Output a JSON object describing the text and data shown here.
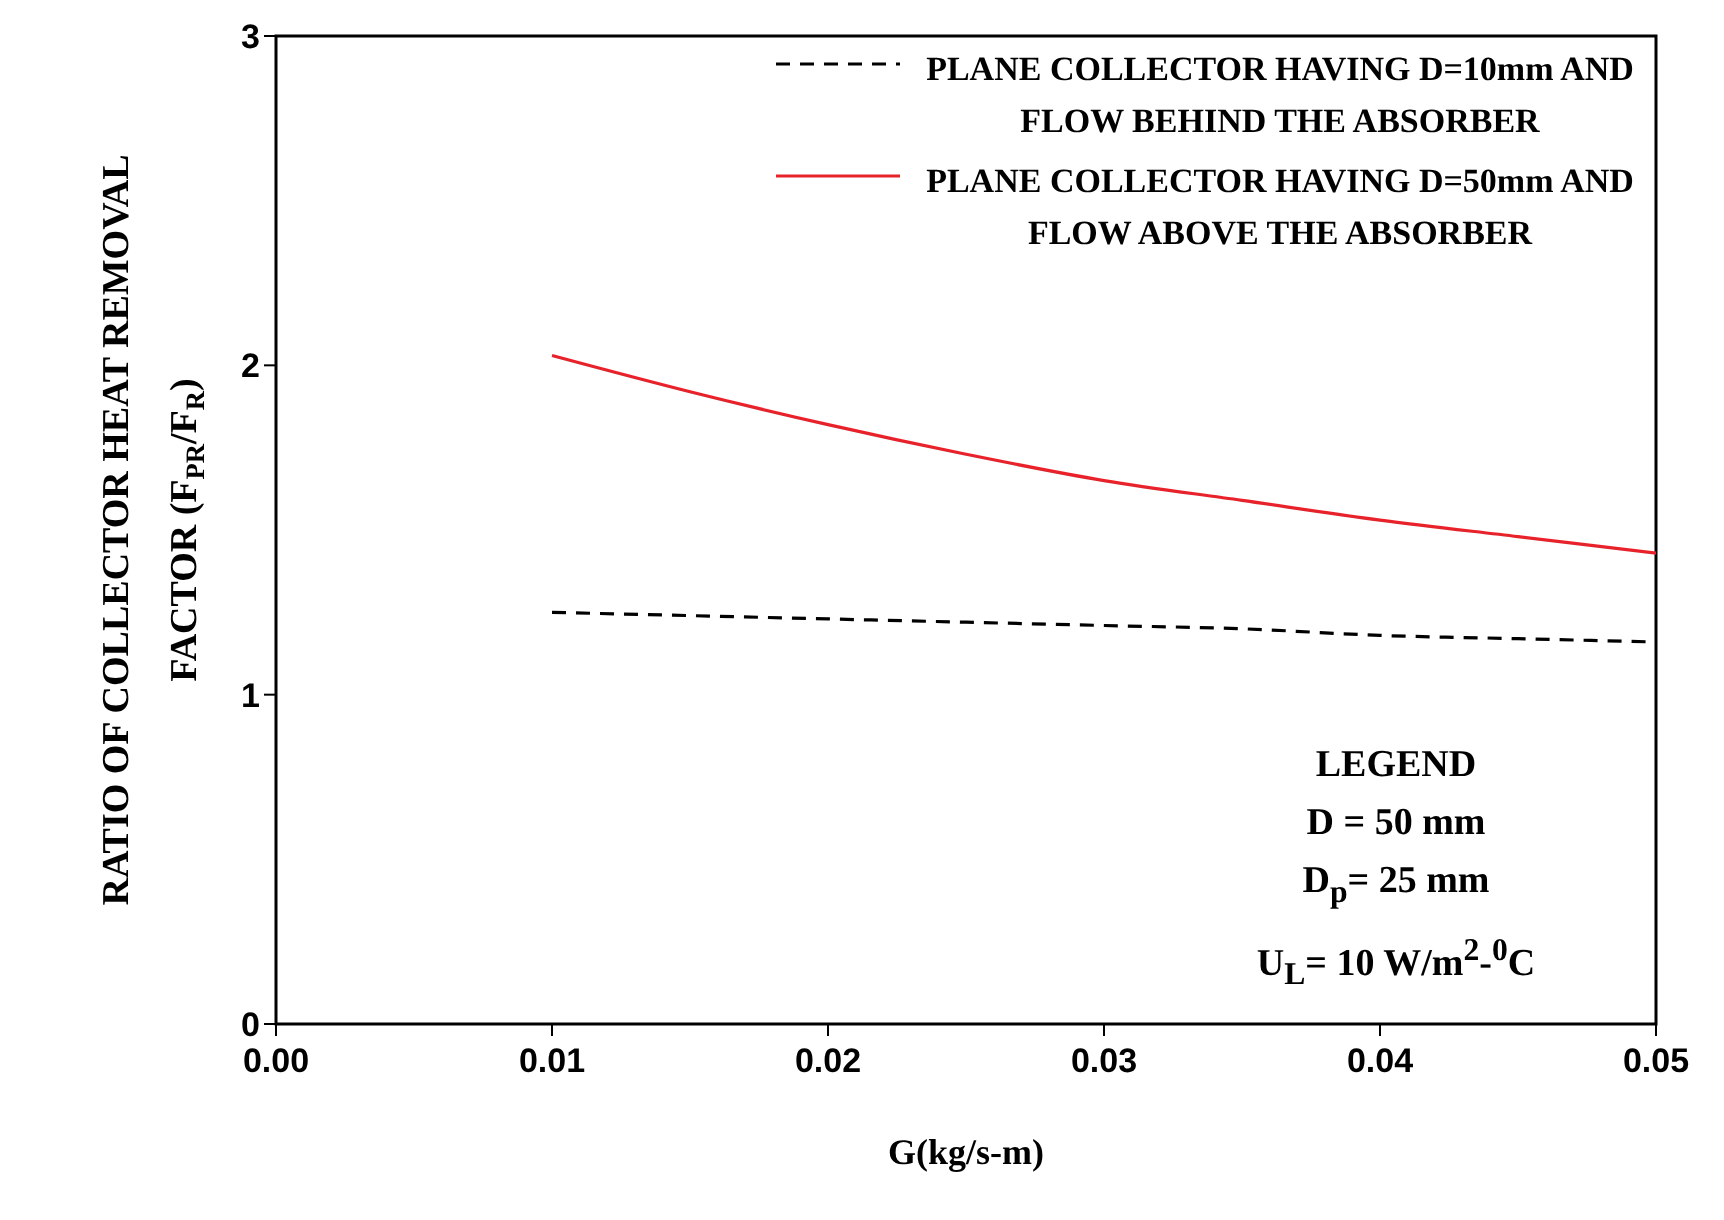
{
  "chart_data": {
    "type": "line",
    "xlabel": "G(kg/s-m)",
    "ylabel": "RATIO OF COLLECTOR HEAT REMOVAL FACTOR (F$_{PR}$/F$_{R}$)",
    "x": [
      0.01,
      0.015,
      0.02,
      0.025,
      0.03,
      0.035,
      0.04,
      0.045,
      0.05
    ],
    "series": [
      {
        "name": "PLANE COLLECTOR HAVING D=10mm AND FLOW BEHIND THE ABSORBER",
        "color": "#000000",
        "line_style": "dashed",
        "values": [
          1.25,
          1.24,
          1.23,
          1.22,
          1.21,
          1.2,
          1.18,
          1.17,
          1.16
        ]
      },
      {
        "name": "PLANE COLLECTOR HAVING D=50mm AND FLOW ABOVE THE ABSORBER",
        "color": "#e8222a",
        "line_style": "solid",
        "values": [
          2.03,
          1.92,
          1.82,
          1.73,
          1.65,
          1.59,
          1.53,
          1.48,
          1.43
        ]
      }
    ],
    "xlim": [
      0,
      0.05
    ],
    "xticks": [
      {
        "value": 0,
        "label": "0.00"
      },
      {
        "value": 0.01,
        "label": "0.01"
      },
      {
        "value": 0.02,
        "label": "0.02"
      },
      {
        "value": 0.03,
        "label": "0.03"
      },
      {
        "value": 0.04,
        "label": "0.04"
      },
      {
        "value": 0.05,
        "label": "0.05"
      }
    ],
    "ylim": [
      0,
      3
    ],
    "yticks": [
      0,
      1,
      2,
      3
    ],
    "annotations": [
      "LEGEND",
      "D = 50 mm",
      "D$_{p}$= 25 mm",
      "U$_{L}$= 10 W/m$^{2}$-$^{0}$C"
    ],
    "legend": "top right",
    "marker": "none",
    "grid": false
  }
}
